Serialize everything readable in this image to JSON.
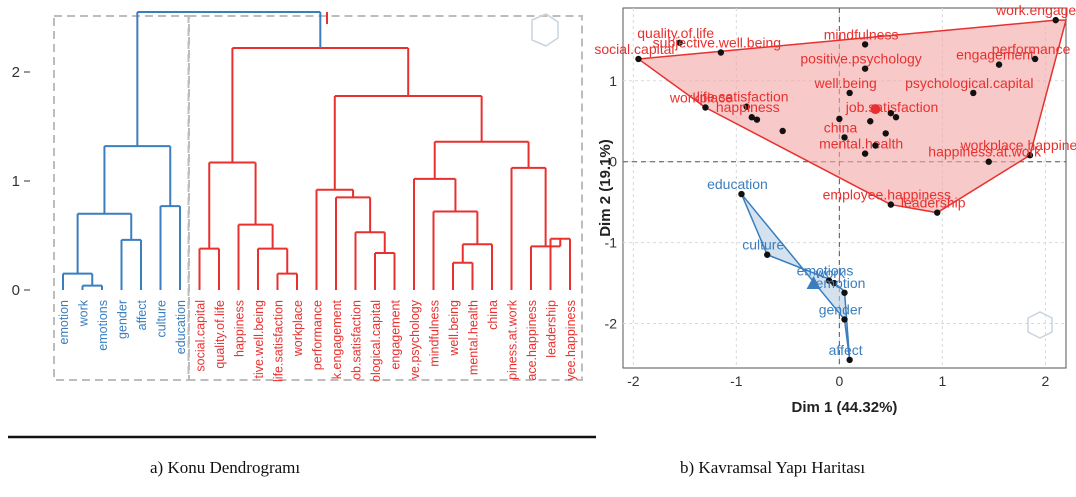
{
  "captions": {
    "a": "a) Konu Dendrogramı",
    "b": "b) Kavramsal Yapı Haritası"
  },
  "colors": {
    "blue": "#3a7ebf",
    "red": "#e8312f",
    "red_fill": "#f4a5a5",
    "blue_fill": "#b8cfe4",
    "axis_text": "#333333",
    "grid": "#d9d9d9",
    "box": "#bdbdbd"
  },
  "chart_data": [
    {
      "type": "dendrogram",
      "title": "",
      "ylim": [
        0,
        2.5
      ],
      "y_ticks": [
        0,
        1,
        2
      ],
      "leaves": [
        "emotion",
        "work",
        "emotions",
        "gender",
        "affect",
        "culture",
        "education",
        "social.capital",
        "quality.of.life",
        "happiness",
        "subjective.well.being",
        "life.satisfaction",
        "workplace",
        "performance",
        "work.engagement",
        "job.satisfaction",
        "psychological.capital",
        "engagement",
        "positive.psychology",
        "mindfulness",
        "well.being",
        "mental.health",
        "china",
        "happiness.at.work",
        "workplace.happiness",
        "leadership",
        "employee.happiness"
      ],
      "leaf_labels_shown": [
        "emotion",
        "work",
        "emotions",
        "gender",
        "affect",
        "culture",
        "education",
        "social.capital",
        "quality.of.life",
        "happiness",
        "tive.well.being",
        "life.satisfaction",
        "workplace",
        "performance",
        "k.engagement",
        "ob.satisfaction",
        "ological.capital",
        "engagement",
        "ve.psychology",
        "mindfulness",
        "well.being",
        "mental.health",
        "china",
        "piness.at.work",
        "ace.happiness",
        "leadership",
        "yee.happiness"
      ],
      "clusters": [
        {
          "name": "blue",
          "color": "blue",
          "leaves": [
            0,
            1,
            2,
            3,
            4,
            5,
            6
          ]
        },
        {
          "name": "red",
          "color": "red",
          "leaves": [
            7,
            8,
            9,
            10,
            11,
            12,
            13,
            14,
            15,
            16,
            17,
            18,
            19,
            20,
            21,
            22,
            23,
            24,
            25,
            26
          ]
        }
      ],
      "merges": [
        {
          "a": 1,
          "b": 2,
          "h": 0.04,
          "color": "blue"
        },
        {
          "a": 0,
          "b": "m0",
          "h": 0.15,
          "color": "blue"
        },
        {
          "a": 3,
          "b": 4,
          "h": 0.46,
          "color": "blue"
        },
        {
          "a": "m1",
          "b": "m2",
          "h": 0.7,
          "color": "blue"
        },
        {
          "a": 5,
          "b": 6,
          "h": 0.77,
          "color": "blue"
        },
        {
          "a": "m3",
          "b": "m4",
          "h": 1.32,
          "color": "blue"
        },
        {
          "a": 7,
          "b": 8,
          "h": 0.38,
          "color": "red"
        },
        {
          "a": 11,
          "b": 12,
          "h": 0.15,
          "color": "red"
        },
        {
          "a": 10,
          "b": "m7",
          "h": 0.38,
          "color": "red"
        },
        {
          "a": 9,
          "b": "m8",
          "h": 0.6,
          "color": "red"
        },
        {
          "a": "m6",
          "b": "m9",
          "h": 1.17,
          "color": "red"
        },
        {
          "a": 16,
          "b": 17,
          "h": 0.34,
          "color": "red"
        },
        {
          "a": 15,
          "b": "m11",
          "h": 0.53,
          "color": "red"
        },
        {
          "a": 14,
          "b": "m12",
          "h": 0.85,
          "color": "red"
        },
        {
          "a": 13,
          "b": "m13",
          "h": 0.92,
          "color": "red"
        },
        {
          "a": 20,
          "b": 21,
          "h": 0.25,
          "color": "red"
        },
        {
          "a": "m15",
          "b": 22,
          "h": 0.42,
          "color": "red"
        },
        {
          "a": 19,
          "b": "m16",
          "h": 0.72,
          "color": "red"
        },
        {
          "a": 18,
          "b": "m17",
          "h": 1.02,
          "color": "red"
        },
        {
          "a": 25,
          "b": 26,
          "h": 0.47,
          "color": "red"
        },
        {
          "a": 24,
          "b": "m19",
          "h": 0.4,
          "color": "red"
        },
        {
          "a": 23,
          "b": "m20",
          "h": 1.12,
          "color": "red"
        },
        {
          "a": "m18",
          "b": "m21",
          "h": 1.36,
          "color": "red"
        },
        {
          "a": "m14",
          "b": "m22",
          "h": 1.78,
          "color": "red"
        },
        {
          "a": "m10",
          "b": "m23",
          "h": 2.22,
          "color": "red"
        },
        {
          "a": "m5",
          "b": "m24",
          "h": 2.55,
          "color": "blue"
        }
      ],
      "cluster_boxes": true,
      "grid": false
    },
    {
      "type": "scatter",
      "title": "",
      "xlabel": "Dim 1 (44.32%)",
      "ylabel": "Dim 2 (19.1%)",
      "xlim": [
        -2.1,
        2.2
      ],
      "ylim": [
        -2.55,
        1.9
      ],
      "x_ticks": [
        -2,
        -1,
        0,
        1,
        2
      ],
      "y_ticks": [
        -2,
        -1,
        0,
        1
      ],
      "grid": true,
      "reference_lines": {
        "x": 0,
        "y": 0
      },
      "groups": [
        {
          "name": "red",
          "color": "red",
          "centroid": {
            "x": 0.35,
            "y": 0.65,
            "marker": "circle"
          },
          "hull": [
            [
              -1.95,
              1.27
            ],
            [
              2.1,
              1.75
            ],
            [
              2.2,
              1.75
            ],
            [
              1.85,
              0.08
            ],
            [
              0.95,
              -0.63
            ],
            [
              0.5,
              -0.53
            ],
            [
              -1.3,
              0.67
            ]
          ],
          "points": [
            {
              "label": "quality.of.life",
              "x": -1.55,
              "y": 1.47
            },
            {
              "label": "subjective.well.being",
              "x": -1.15,
              "y": 1.35
            },
            {
              "label": "mindfulness",
              "x": 0.25,
              "y": 1.45
            },
            {
              "label": "work.engagement",
              "x": 2.1,
              "y": 1.75
            },
            {
              "label": "social.capital",
              "x": -1.95,
              "y": 1.27
            },
            {
              "label": "positive.psychology",
              "x": 0.25,
              "y": 1.15
            },
            {
              "label": "engagement",
              "x": 1.55,
              "y": 1.2
            },
            {
              "label": "performance",
              "x": 1.9,
              "y": 1.27
            },
            {
              "label": "life.satisfaction",
              "x": -0.9,
              "y": 0.68
            },
            {
              "label": "well.being",
              "x": 0.1,
              "y": 0.85
            },
            {
              "label": "psychological.capital",
              "x": 1.3,
              "y": 0.85
            },
            {
              "label": "job.satisfaction",
              "x": 0.55,
              "y": 0.55
            },
            {
              "label": "workplace",
              "x": -1.3,
              "y": 0.67
            },
            {
              "label": "china",
              "x": 0.05,
              "y": 0.3
            },
            {
              "label": "workplace.happiness",
              "x": 1.85,
              "y": 0.08
            },
            {
              "label": "happiness",
              "x": -0.85,
              "y": 0.55
            },
            {
              "label": "mental.health",
              "x": 0.25,
              "y": 0.1
            },
            {
              "label": "happiness.at.work",
              "x": 1.45,
              "y": 0.0
            },
            {
              "label": "employee.happiness",
              "x": 0.5,
              "y": -0.53
            },
            {
              "label": "leadership",
              "x": 0.95,
              "y": -0.63
            },
            {
              "label": "",
              "x": -0.55,
              "y": 0.38
            },
            {
              "label": "",
              "x": -0.8,
              "y": 0.52
            },
            {
              "label": "",
              "x": 0.0,
              "y": 0.53
            },
            {
              "label": "",
              "x": 0.3,
              "y": 0.5
            },
            {
              "label": "",
              "x": 0.5,
              "y": 0.6
            },
            {
              "label": "",
              "x": 0.45,
              "y": 0.35
            },
            {
              "label": "",
              "x": 0.35,
              "y": 0.2
            }
          ]
        },
        {
          "name": "blue",
          "color": "blue",
          "centroid": {
            "x": -0.25,
            "y": -1.5,
            "marker": "triangle"
          },
          "hull": [
            [
              -0.95,
              -0.4
            ],
            [
              -0.7,
              -1.15
            ],
            [
              -0.1,
              -1.45
            ],
            [
              0.05,
              -1.6
            ],
            [
              0.1,
              -2.45
            ],
            [
              0.05,
              -1.95
            ]
          ],
          "points": [
            {
              "label": "education",
              "x": -0.95,
              "y": -0.4
            },
            {
              "label": "culture",
              "x": -0.7,
              "y": -1.15
            },
            {
              "label": "emotions",
              "x": -0.1,
              "y": -1.47
            },
            {
              "label": "work",
              "x": -0.05,
              "y": -1.5
            },
            {
              "label": "emotion",
              "x": 0.05,
              "y": -1.62
            },
            {
              "label": "gender",
              "x": 0.05,
              "y": -1.95
            },
            {
              "label": "affect",
              "x": 0.1,
              "y": -2.45
            }
          ]
        }
      ]
    }
  ]
}
